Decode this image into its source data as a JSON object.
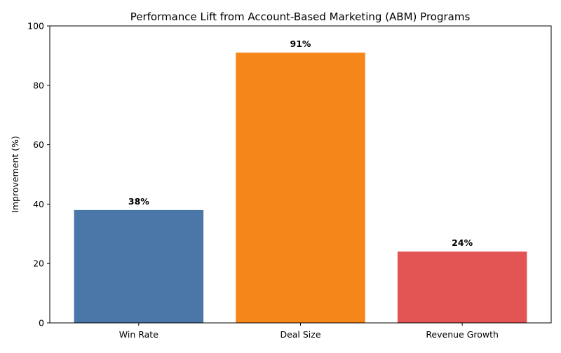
{
  "chart_data": {
    "type": "bar",
    "title": "Performance Lift from Account-Based Marketing (ABM) Programs",
    "xlabel": "",
    "ylabel": "Improvement (%)",
    "categories": [
      "Win Rate",
      "Deal Size",
      "Revenue Growth"
    ],
    "values": [
      38,
      91,
      24
    ],
    "data_labels": [
      "38%",
      "91%",
      "24%"
    ],
    "colors": [
      "#4a76a8",
      "#f5871a",
      "#e35555"
    ],
    "ylim": [
      0,
      100
    ],
    "yticks": [
      0,
      20,
      40,
      60,
      80,
      100
    ],
    "grid": false,
    "legend": "none"
  }
}
